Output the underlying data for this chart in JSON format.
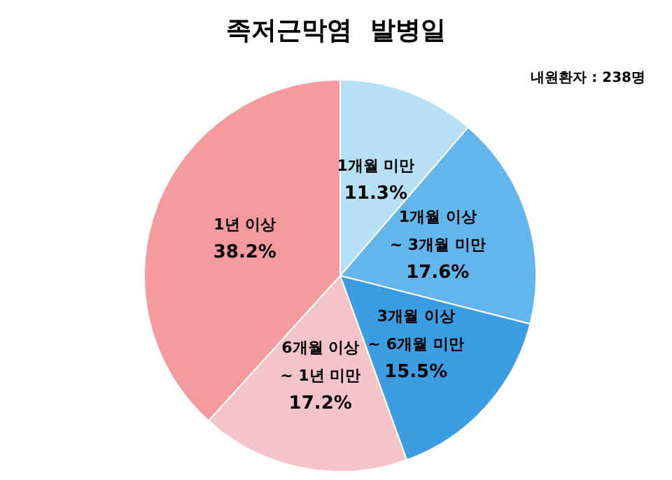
{
  "chart_data": {
    "type": "pie",
    "title": "족저근막염  발병일",
    "annotations": [
      "내원환자 : 238명"
    ],
    "categories": [
      "1개월 미만",
      "1개월 이상 ~ 3개월 미만",
      "3개월 이상 ~ 6개월 미만",
      "6개월 이상 ~ 1년 미만",
      "1년 이상"
    ],
    "values": [
      11.3,
      17.6,
      15.5,
      17.2,
      38.2
    ],
    "value_labels": [
      "11.3%",
      "17.6%",
      "15.5%",
      "17.2%",
      "38.2%"
    ],
    "colors": [
      "#b5e0f6",
      "#62b6ec",
      "#3d9de2",
      "#f4c4c9",
      "#f59b9e"
    ],
    "legend": false
  }
}
